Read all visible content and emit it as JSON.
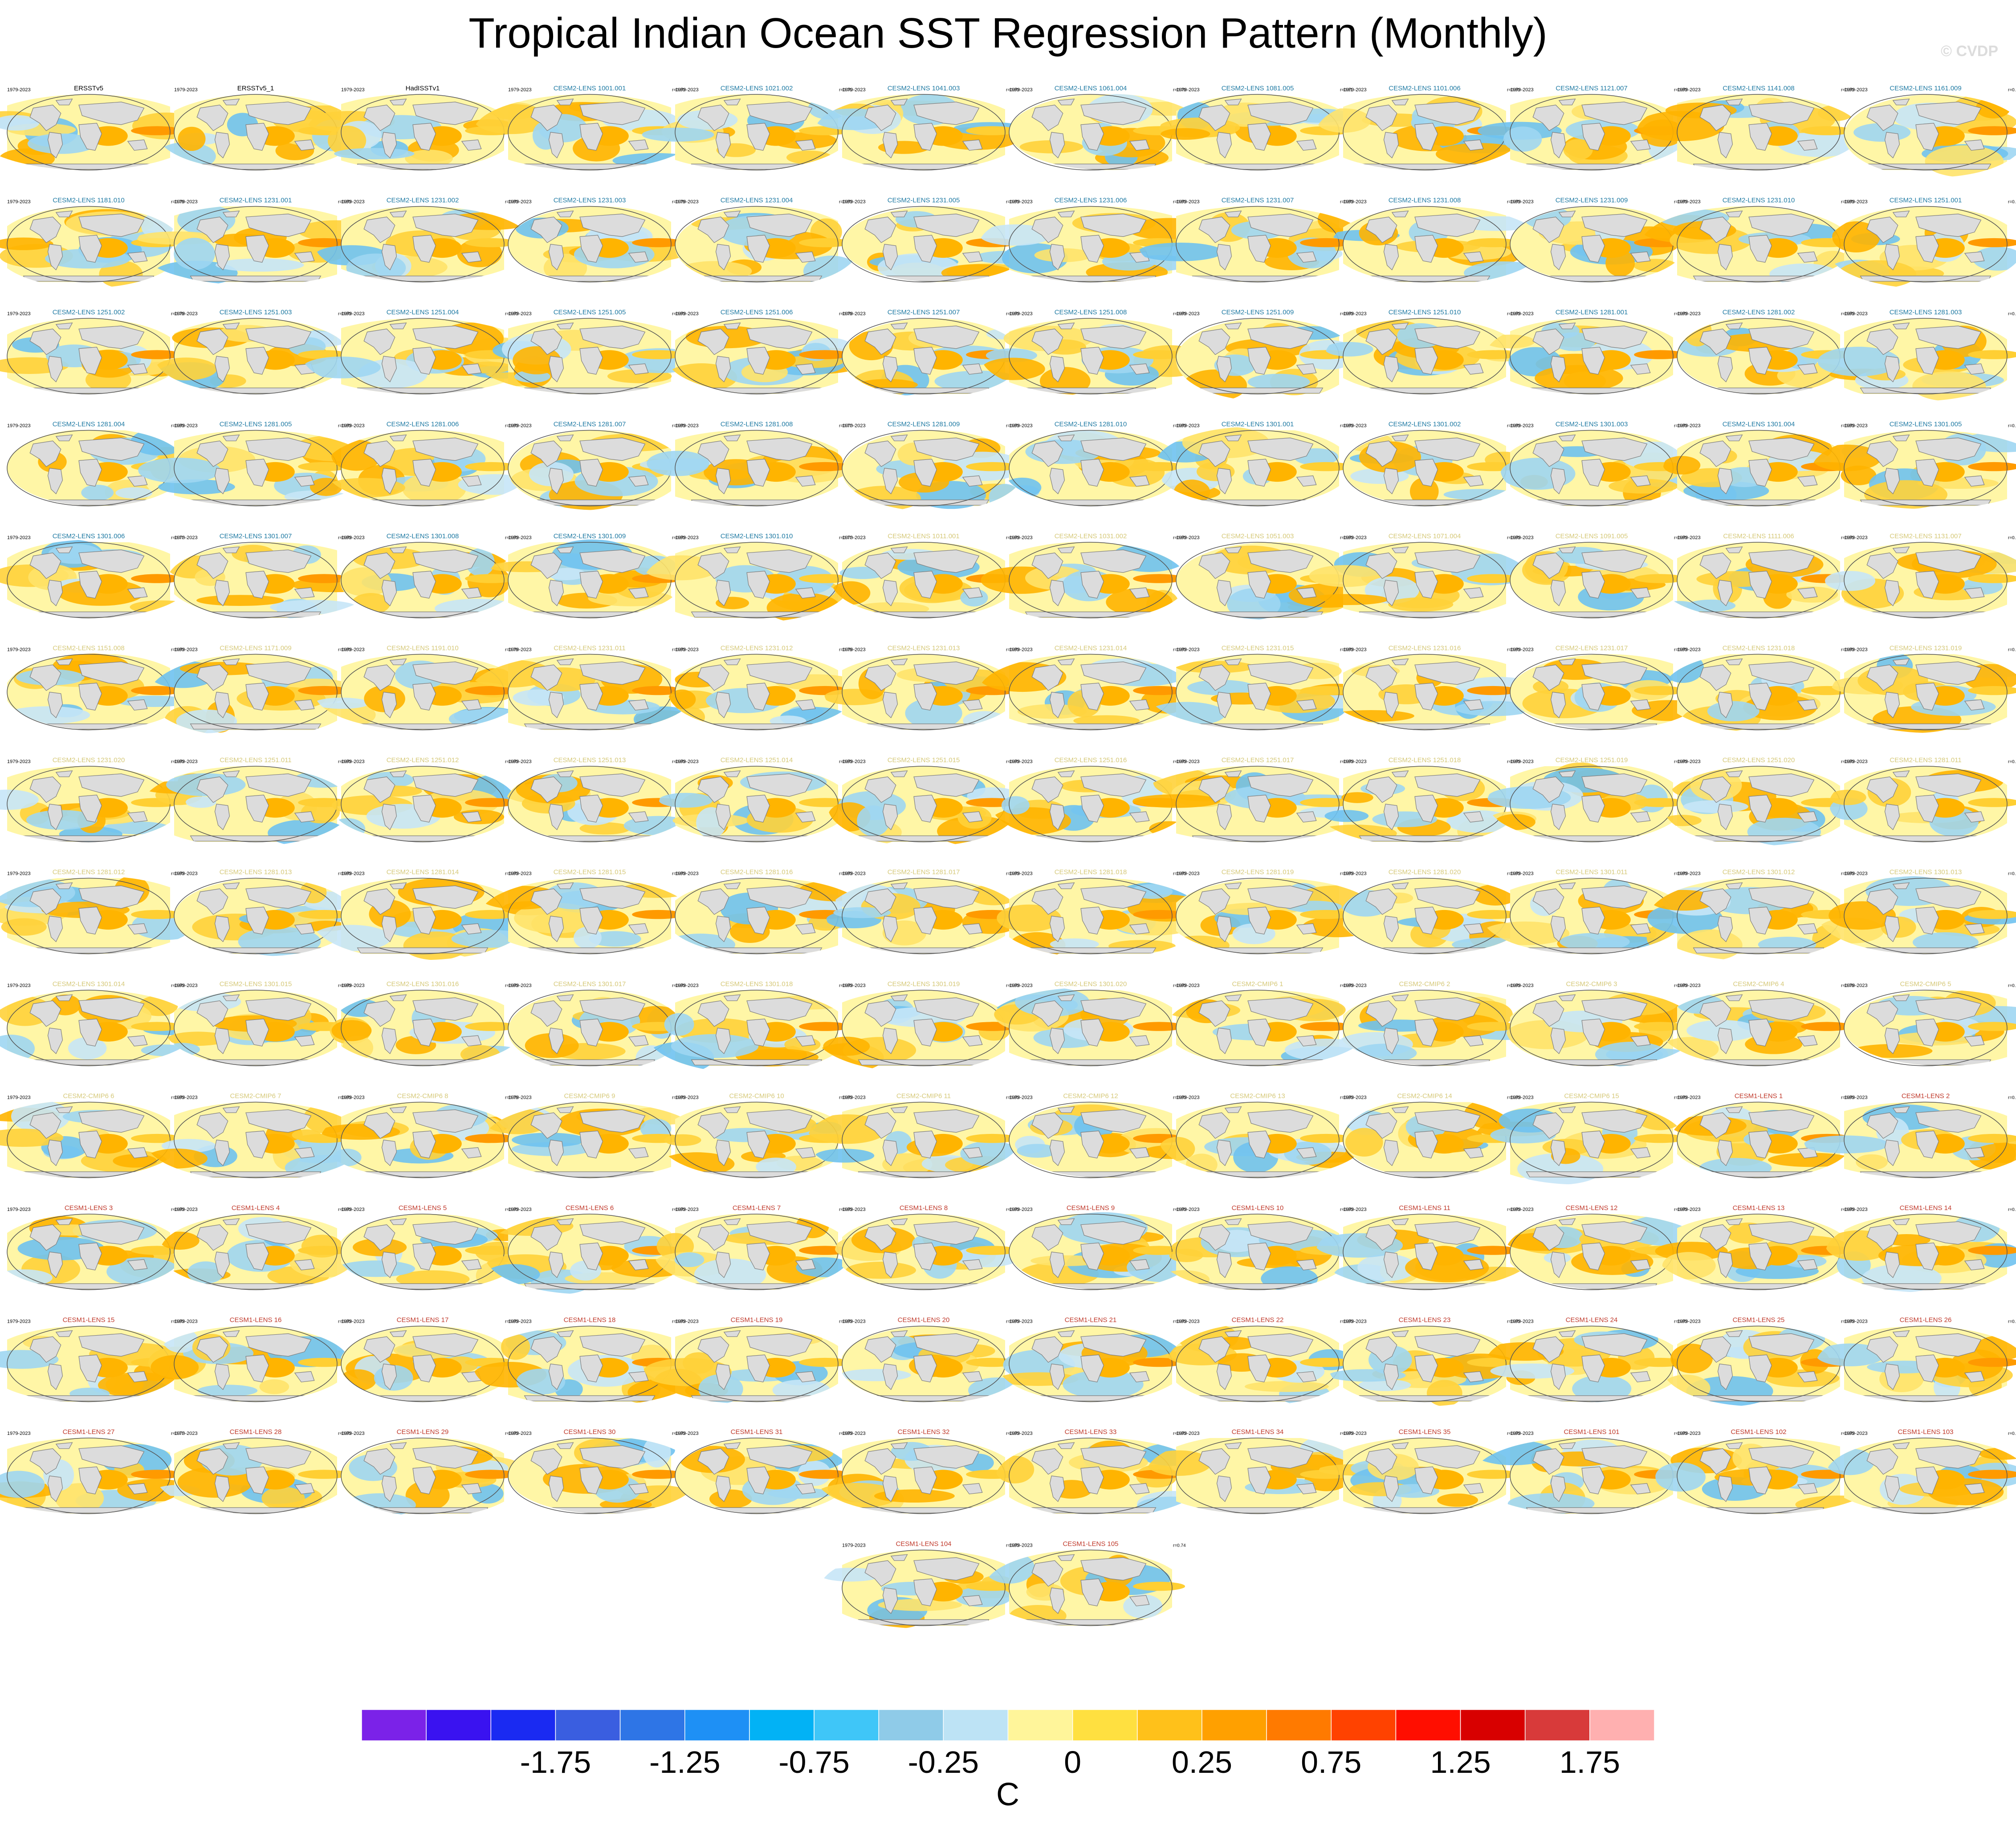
{
  "title": "Tropical Indian Ocean SST Regression Pattern (Monthly)",
  "watermark": "© CVDP",
  "colors": {
    "land": "#dcdcdc",
    "coast": "#7d7d7d",
    "obs_title": "#000000",
    "cesm2_title": "#1f7aa3",
    "cesm2_cmip6_title": "#d6c97a",
    "cesm1_title": "#c0392b"
  },
  "panel_period": "1979-2023",
  "panels": [
    {
      "title": "ERSSTv5",
      "group": "obs",
      "r": ""
    },
    {
      "title": "ERSSTv5_1",
      "group": "obs",
      "r": ""
    },
    {
      "title": "HadISSTv1",
      "group": "obs",
      "r": ""
    },
    {
      "title": "CESM2-LENS 1001.001",
      "group": "cesm2",
      "r": "r=0.80"
    },
    {
      "title": "CESM2-LENS 1021.002",
      "group": "cesm2",
      "r": "r=0.76"
    },
    {
      "title": "CESM2-LENS 1041.003",
      "group": "cesm2",
      "r": "r=0.80"
    },
    {
      "title": "CESM2-LENS 1061.004",
      "group": "cesm2",
      "r": "r=0.79"
    },
    {
      "title": "CESM2-LENS 1081.005",
      "group": "cesm2",
      "r": "r=0.81"
    },
    {
      "title": "CESM2-LENS 1101.006",
      "group": "cesm2",
      "r": "r=0.80"
    },
    {
      "title": "CESM2-LENS 1121.007",
      "group": "cesm2",
      "r": "r=0.80"
    },
    {
      "title": "CESM2-LENS 1141.008",
      "group": "cesm2",
      "r": "r=0.80"
    },
    {
      "title": "CESM2-LENS 1161.009",
      "group": "cesm2",
      "r": "r=0.80"
    },
    {
      "title": "CESM2-LENS 1181.010",
      "group": "cesm2",
      "r": "r=0.79"
    },
    {
      "title": "CESM2-LENS 1231.001",
      "group": "cesm2",
      "r": "r=0.80"
    },
    {
      "title": "CESM2-LENS 1231.002",
      "group": "cesm2",
      "r": "r=0.80"
    },
    {
      "title": "CESM2-LENS 1231.003",
      "group": "cesm2",
      "r": "r=0.79"
    },
    {
      "title": "CESM2-LENS 1231.004",
      "group": "cesm2",
      "r": "r=0.80"
    },
    {
      "title": "CESM2-LENS 1231.005",
      "group": "cesm2",
      "r": "r=0.80"
    },
    {
      "title": "CESM2-LENS 1231.006",
      "group": "cesm2",
      "r": "r=0.80"
    },
    {
      "title": "CESM2-LENS 1231.007",
      "group": "cesm2",
      "r": "r=0.80"
    },
    {
      "title": "CESM2-LENS 1231.008",
      "group": "cesm2",
      "r": "r=0.80"
    },
    {
      "title": "CESM2-LENS 1231.009",
      "group": "cesm2",
      "r": "r=0.80"
    },
    {
      "title": "CESM2-LENS 1231.010",
      "group": "cesm2",
      "r": "r=0.80"
    },
    {
      "title": "CESM2-LENS 1251.001",
      "group": "cesm2",
      "r": "r=0.80"
    },
    {
      "title": "CESM2-LENS 1251.002",
      "group": "cesm2",
      "r": "r=0.79"
    },
    {
      "title": "CESM2-LENS 1251.003",
      "group": "cesm2",
      "r": "r=0.80"
    },
    {
      "title": "CESM2-LENS 1251.004",
      "group": "cesm2",
      "r": "r=0.80"
    },
    {
      "title": "CESM2-LENS 1251.005",
      "group": "cesm2",
      "r": "r=0.80"
    },
    {
      "title": "CESM2-LENS 1251.006",
      "group": "cesm2",
      "r": "r=0.79"
    },
    {
      "title": "CESM2-LENS 1251.007",
      "group": "cesm2",
      "r": "r=0.80"
    },
    {
      "title": "CESM2-LENS 1251.008",
      "group": "cesm2",
      "r": "r=0.80"
    },
    {
      "title": "CESM2-LENS 1251.009",
      "group": "cesm2",
      "r": "r=0.80"
    },
    {
      "title": "CESM2-LENS 1251.010",
      "group": "cesm2",
      "r": "r=0.80"
    },
    {
      "title": "CESM2-LENS 1281.001",
      "group": "cesm2",
      "r": "r=0.80"
    },
    {
      "title": "CESM2-LENS 1281.002",
      "group": "cesm2",
      "r": "r=0.80"
    },
    {
      "title": "CESM2-LENS 1281.003",
      "group": "cesm2",
      "r": "r=0.80"
    },
    {
      "title": "CESM2-LENS 1281.004",
      "group": "cesm2",
      "r": "r=0.80"
    },
    {
      "title": "CESM2-LENS 1281.005",
      "group": "cesm2",
      "r": "r=0.80"
    },
    {
      "title": "CESM2-LENS 1281.006",
      "group": "cesm2",
      "r": "r=0.80"
    },
    {
      "title": "CESM2-LENS 1281.007",
      "group": "cesm2",
      "r": "r=0.80"
    },
    {
      "title": "CESM2-LENS 1281.008",
      "group": "cesm2",
      "r": "r=0.77"
    },
    {
      "title": "CESM2-LENS 1281.009",
      "group": "cesm2",
      "r": "r=0.80"
    },
    {
      "title": "CESM2-LENS 1281.010",
      "group": "cesm2",
      "r": "r=0.80"
    },
    {
      "title": "CESM2-LENS 1301.001",
      "group": "cesm2",
      "r": "r=0.80"
    },
    {
      "title": "CESM2-LENS 1301.002",
      "group": "cesm2",
      "r": "r=0.80"
    },
    {
      "title": "CESM2-LENS 1301.003",
      "group": "cesm2",
      "r": "r=0.80"
    },
    {
      "title": "CESM2-LENS 1301.004",
      "group": "cesm2",
      "r": "r=0.80"
    },
    {
      "title": "CESM2-LENS 1301.005",
      "group": "cesm2",
      "r": "r=0.80"
    },
    {
      "title": "CESM2-LENS 1301.006",
      "group": "cesm2",
      "r": "r=0.77"
    },
    {
      "title": "CESM2-LENS 1301.007",
      "group": "cesm2",
      "r": "r=0.80"
    },
    {
      "title": "CESM2-LENS 1301.008",
      "group": "cesm2",
      "r": "r=0.80"
    },
    {
      "title": "CESM2-LENS 1301.009",
      "group": "cesm2",
      "r": "r=0.80"
    },
    {
      "title": "CESM2-LENS 1301.010",
      "group": "cesm2",
      "r": "r=0.77"
    },
    {
      "title": "CESM2-LENS 1011.001",
      "group": "cesm2_cmip6",
      "r": "r=0.80"
    },
    {
      "title": "CESM2-LENS 1031.002",
      "group": "cesm2_cmip6",
      "r": "r=0.80"
    },
    {
      "title": "CESM2-LENS 1051.003",
      "group": "cesm2_cmip6",
      "r": "r=0.80"
    },
    {
      "title": "CESM2-LENS 1071.004",
      "group": "cesm2_cmip6",
      "r": "r=0.80"
    },
    {
      "title": "CESM2-LENS 1091.005",
      "group": "cesm2_cmip6",
      "r": "r=0.80"
    },
    {
      "title": "CESM2-LENS 1111.006",
      "group": "cesm2_cmip6",
      "r": "r=0.80"
    },
    {
      "title": "CESM2-LENS 1131.007",
      "group": "cesm2_cmip6",
      "r": "r=0.80"
    },
    {
      "title": "CESM2-LENS 1151.008",
      "group": "cesm2_cmip6",
      "r": "r=0.80"
    },
    {
      "title": "CESM2-LENS 1171.009",
      "group": "cesm2_cmip6",
      "r": "r=0.80"
    },
    {
      "title": "CESM2-LENS 1191.010",
      "group": "cesm2_cmip6",
      "r": "r=0.79"
    },
    {
      "title": "CESM2-LENS 1231.011",
      "group": "cesm2_cmip6",
      "r": "r=0.80"
    },
    {
      "title": "CESM2-LENS 1231.012",
      "group": "cesm2_cmip6",
      "r": "r=0.79"
    },
    {
      "title": "CESM2-LENS 1231.013",
      "group": "cesm2_cmip6",
      "r": "r=0.80"
    },
    {
      "title": "CESM2-LENS 1231.014",
      "group": "cesm2_cmip6",
      "r": "r=0.80"
    },
    {
      "title": "CESM2-LENS 1231.015",
      "group": "cesm2_cmip6",
      "r": "r=0.80"
    },
    {
      "title": "CESM2-LENS 1231.016",
      "group": "cesm2_cmip6",
      "r": "r=0.80"
    },
    {
      "title": "CESM2-LENS 1231.017",
      "group": "cesm2_cmip6",
      "r": "r=0.80"
    },
    {
      "title": "CESM2-LENS 1231.018",
      "group": "cesm2_cmip6",
      "r": "r=0.80"
    },
    {
      "title": "CESM2-LENS 1231.019",
      "group": "cesm2_cmip6",
      "r": "r=0.80"
    },
    {
      "title": "CESM2-LENS 1231.020",
      "group": "cesm2_cmip6",
      "r": "r=0.80"
    },
    {
      "title": "CESM2-LENS 1251.011",
      "group": "cesm2_cmip6",
      "r": "r=0.80"
    },
    {
      "title": "CESM2-LENS 1251.012",
      "group": "cesm2_cmip6",
      "r": "r=0.80"
    },
    {
      "title": "CESM2-LENS 1251.013",
      "group": "cesm2_cmip6",
      "r": "r=0.80"
    },
    {
      "title": "CESM2-LENS 1251.014",
      "group": "cesm2_cmip6",
      "r": "r=0.80"
    },
    {
      "title": "CESM2-LENS 1251.015",
      "group": "cesm2_cmip6",
      "r": "r=0.80"
    },
    {
      "title": "CESM2-LENS 1251.016",
      "group": "cesm2_cmip6",
      "r": "r=0.80"
    },
    {
      "title": "CESM2-LENS 1251.017",
      "group": "cesm2_cmip6",
      "r": "r=0.80"
    },
    {
      "title": "CESM2-LENS 1251.018",
      "group": "cesm2_cmip6",
      "r": "r=0.80"
    },
    {
      "title": "CESM2-LENS 1251.019",
      "group": "cesm2_cmip6",
      "r": "r=0.80"
    },
    {
      "title": "CESM2-LENS 1251.020",
      "group": "cesm2_cmip6",
      "r": "r=0.80"
    },
    {
      "title": "CESM2-LENS 1281.011",
      "group": "cesm2_cmip6",
      "r": "r=0.80"
    },
    {
      "title": "CESM2-LENS 1281.012",
      "group": "cesm2_cmip6",
      "r": "r=0.80"
    },
    {
      "title": "CESM2-LENS 1281.013",
      "group": "cesm2_cmip6",
      "r": "r=0.80"
    },
    {
      "title": "CESM2-LENS 1281.014",
      "group": "cesm2_cmip6",
      "r": "r=0.80"
    },
    {
      "title": "CESM2-LENS 1281.015",
      "group": "cesm2_cmip6",
      "r": "r=0.80"
    },
    {
      "title": "CESM2-LENS 1281.016",
      "group": "cesm2_cmip6",
      "r": "r=0.80"
    },
    {
      "title": "CESM2-LENS 1281.017",
      "group": "cesm2_cmip6",
      "r": "r=0.80"
    },
    {
      "title": "CESM2-LENS 1281.018",
      "group": "cesm2_cmip6",
      "r": "r=0.80"
    },
    {
      "title": "CESM2-LENS 1281.019",
      "group": "cesm2_cmip6",
      "r": "r=0.80"
    },
    {
      "title": "CESM2-LENS 1281.020",
      "group": "cesm2_cmip6",
      "r": "r=0.80"
    },
    {
      "title": "CESM2-LENS 1301.011",
      "group": "cesm2_cmip6",
      "r": "r=0.80"
    },
    {
      "title": "CESM2-LENS 1301.012",
      "group": "cesm2_cmip6",
      "r": "r=0.80"
    },
    {
      "title": "CESM2-LENS 1301.013",
      "group": "cesm2_cmip6",
      "r": "r=0.80"
    },
    {
      "title": "CESM2-LENS 1301.014",
      "group": "cesm2_cmip6",
      "r": "r=0.80"
    },
    {
      "title": "CESM2-LENS 1301.015",
      "group": "cesm2_cmip6",
      "r": "r=0.80"
    },
    {
      "title": "CESM2-LENS 1301.016",
      "group": "cesm2_cmip6",
      "r": "r=0.80"
    },
    {
      "title": "CESM2-LENS 1301.017",
      "group": "cesm2_cmip6",
      "r": "r=0.80"
    },
    {
      "title": "CESM2-LENS 1301.018",
      "group": "cesm2_cmip6",
      "r": "r=0.80"
    },
    {
      "title": "CESM2-LENS 1301.019",
      "group": "cesm2_cmip6",
      "r": "r=0.80"
    },
    {
      "title": "CESM2-LENS 1301.020",
      "group": "cesm2_cmip6",
      "r": "r=0.80"
    },
    {
      "title": "CESM2-CMIP6 1",
      "group": "cmip6",
      "r": "r=0.80"
    },
    {
      "title": "CESM2-CMIP6 2",
      "group": "cmip6",
      "r": "r=0.80"
    },
    {
      "title": "CESM2-CMIP6 3",
      "group": "cmip6",
      "r": "r=0.80"
    },
    {
      "title": "CESM2-CMIP6 4",
      "group": "cmip6",
      "r": "r=0.79"
    },
    {
      "title": "CESM2-CMIP6 5",
      "group": "cmip6",
      "r": "r=0.80"
    },
    {
      "title": "CESM2-CMIP6 6",
      "group": "cmip6",
      "r": "r=0.80"
    },
    {
      "title": "CESM2-CMIP6 7",
      "group": "cmip6",
      "r": "r=0.80"
    },
    {
      "title": "CESM2-CMIP6 8",
      "group": "cmip6",
      "r": "r=0.79"
    },
    {
      "title": "CESM2-CMIP6 9",
      "group": "cmip6",
      "r": "r=0.80"
    },
    {
      "title": "CESM2-CMIP6 10",
      "group": "cmip6",
      "r": "r=0.80"
    },
    {
      "title": "CESM2-CMIP6 11",
      "group": "cmip6",
      "r": "r=0.80"
    },
    {
      "title": "CESM2-CMIP6 12",
      "group": "cmip6",
      "r": "r=0.80"
    },
    {
      "title": "CESM2-CMIP6 13",
      "group": "cmip6",
      "r": "r=0.80"
    },
    {
      "title": "CESM2-CMIP6 14",
      "group": "cmip6",
      "r": "r=0.80"
    },
    {
      "title": "CESM2-CMIP6 15",
      "group": "cmip6",
      "r": "r=0.80"
    },
    {
      "title": "CESM1-LENS 1",
      "group": "cesm1",
      "r": "r=0.80"
    },
    {
      "title": "CESM1-LENS 2",
      "group": "cesm1",
      "r": "r=0.80"
    },
    {
      "title": "CESM1-LENS 3",
      "group": "cesm1",
      "r": "r=0.80"
    },
    {
      "title": "CESM1-LENS 4",
      "group": "cesm1",
      "r": "r=0.80"
    },
    {
      "title": "CESM1-LENS 5",
      "group": "cesm1",
      "r": "r=0.80"
    },
    {
      "title": "CESM1-LENS 6",
      "group": "cesm1",
      "r": "r=0.80"
    },
    {
      "title": "CESM1-LENS 7",
      "group": "cesm1",
      "r": "r=0.80"
    },
    {
      "title": "CESM1-LENS 8",
      "group": "cesm1",
      "r": "r=0.80"
    },
    {
      "title": "CESM1-LENS 9",
      "group": "cesm1",
      "r": "r=0.80"
    },
    {
      "title": "CESM1-LENS 10",
      "group": "cesm1",
      "r": "r=0.80"
    },
    {
      "title": "CESM1-LENS 11",
      "group": "cesm1",
      "r": "r=0.80"
    },
    {
      "title": "CESM1-LENS 12",
      "group": "cesm1",
      "r": "r=0.80"
    },
    {
      "title": "CESM1-LENS 13",
      "group": "cesm1",
      "r": "r=0.80"
    },
    {
      "title": "CESM1-LENS 14",
      "group": "cesm1",
      "r": "r=0.80"
    },
    {
      "title": "CESM1-LENS 15",
      "group": "cesm1",
      "r": "r=0.80"
    },
    {
      "title": "CESM1-LENS 16",
      "group": "cesm1",
      "r": "r=0.80"
    },
    {
      "title": "CESM1-LENS 17",
      "group": "cesm1",
      "r": "r=0.80"
    },
    {
      "title": "CESM1-LENS 18",
      "group": "cesm1",
      "r": "r=0.80"
    },
    {
      "title": "CESM1-LENS 19",
      "group": "cesm1",
      "r": "r=0.80"
    },
    {
      "title": "CESM1-LENS 20",
      "group": "cesm1",
      "r": "r=0.80"
    },
    {
      "title": "CESM1-LENS 21",
      "group": "cesm1",
      "r": "r=0.80"
    },
    {
      "title": "CESM1-LENS 22",
      "group": "cesm1",
      "r": "r=0.80"
    },
    {
      "title": "CESM1-LENS 23",
      "group": "cesm1",
      "r": "r=0.80"
    },
    {
      "title": "CESM1-LENS 24",
      "group": "cesm1",
      "r": "r=0.80"
    },
    {
      "title": "CESM1-LENS 25",
      "group": "cesm1",
      "r": "r=0.80"
    },
    {
      "title": "CESM1-LENS 26",
      "group": "cesm1",
      "r": "r=0.80"
    },
    {
      "title": "CESM1-LENS 27",
      "group": "cesm1",
      "r": "r=0.77"
    },
    {
      "title": "CESM1-LENS 28",
      "group": "cesm1",
      "r": "r=0.80"
    },
    {
      "title": "CESM1-LENS 29",
      "group": "cesm1",
      "r": "r=0.80"
    },
    {
      "title": "CESM1-LENS 30",
      "group": "cesm1",
      "r": "r=0.80"
    },
    {
      "title": "CESM1-LENS 31",
      "group": "cesm1",
      "r": "r=0.80"
    },
    {
      "title": "CESM1-LENS 32",
      "group": "cesm1",
      "r": "r=0.80"
    },
    {
      "title": "CESM1-LENS 33",
      "group": "cesm1",
      "r": "r=0.80"
    },
    {
      "title": "CESM1-LENS 34",
      "group": "cesm1",
      "r": "r=0.80"
    },
    {
      "title": "CESM1-LENS 35",
      "group": "cesm1",
      "r": "r=0.80"
    },
    {
      "title": "CESM1-LENS 101",
      "group": "cesm1",
      "r": "r=0.80"
    },
    {
      "title": "CESM1-LENS 102",
      "group": "cesm1",
      "r": "r=0.80"
    },
    {
      "title": "CESM1-LENS 103",
      "group": "cesm1",
      "r": "r=0.71"
    },
    {
      "title": "CESM1-LENS 104",
      "group": "cesm1",
      "r": "r=0.80"
    },
    {
      "title": "CESM1-LENS 105",
      "group": "cesm1",
      "r": "r=0.74"
    }
  ],
  "colorbar": {
    "units": "C",
    "levels": [
      -2.25,
      -2,
      -1.75,
      -1.5,
      -1.25,
      -1,
      -0.75,
      -0.5,
      -0.25,
      -0.1,
      0,
      0.1,
      0.25,
      0.5,
      0.75,
      1,
      1.25,
      1.5,
      1.75,
      2
    ],
    "tick_labels": [
      "-1.75",
      "-1.25",
      "-0.75",
      "-0.25",
      "0",
      "0.25",
      "0.75",
      "1.25",
      "1.75"
    ],
    "colors": [
      "#7b22e8",
      "#3a12f0",
      "#1a2af2",
      "#3a5ee0",
      "#2e75e6",
      "#1e90f5",
      "#02b2f5",
      "#3fc6f8",
      "#8fcbe8",
      "#bde3f5",
      "#fff59a",
      "#ffe040",
      "#ffc11a",
      "#ffa000",
      "#ff7a00",
      "#ff4200",
      "#ff0e00",
      "#d80000",
      "#d83a3a",
      "#ffb0b0"
    ]
  }
}
